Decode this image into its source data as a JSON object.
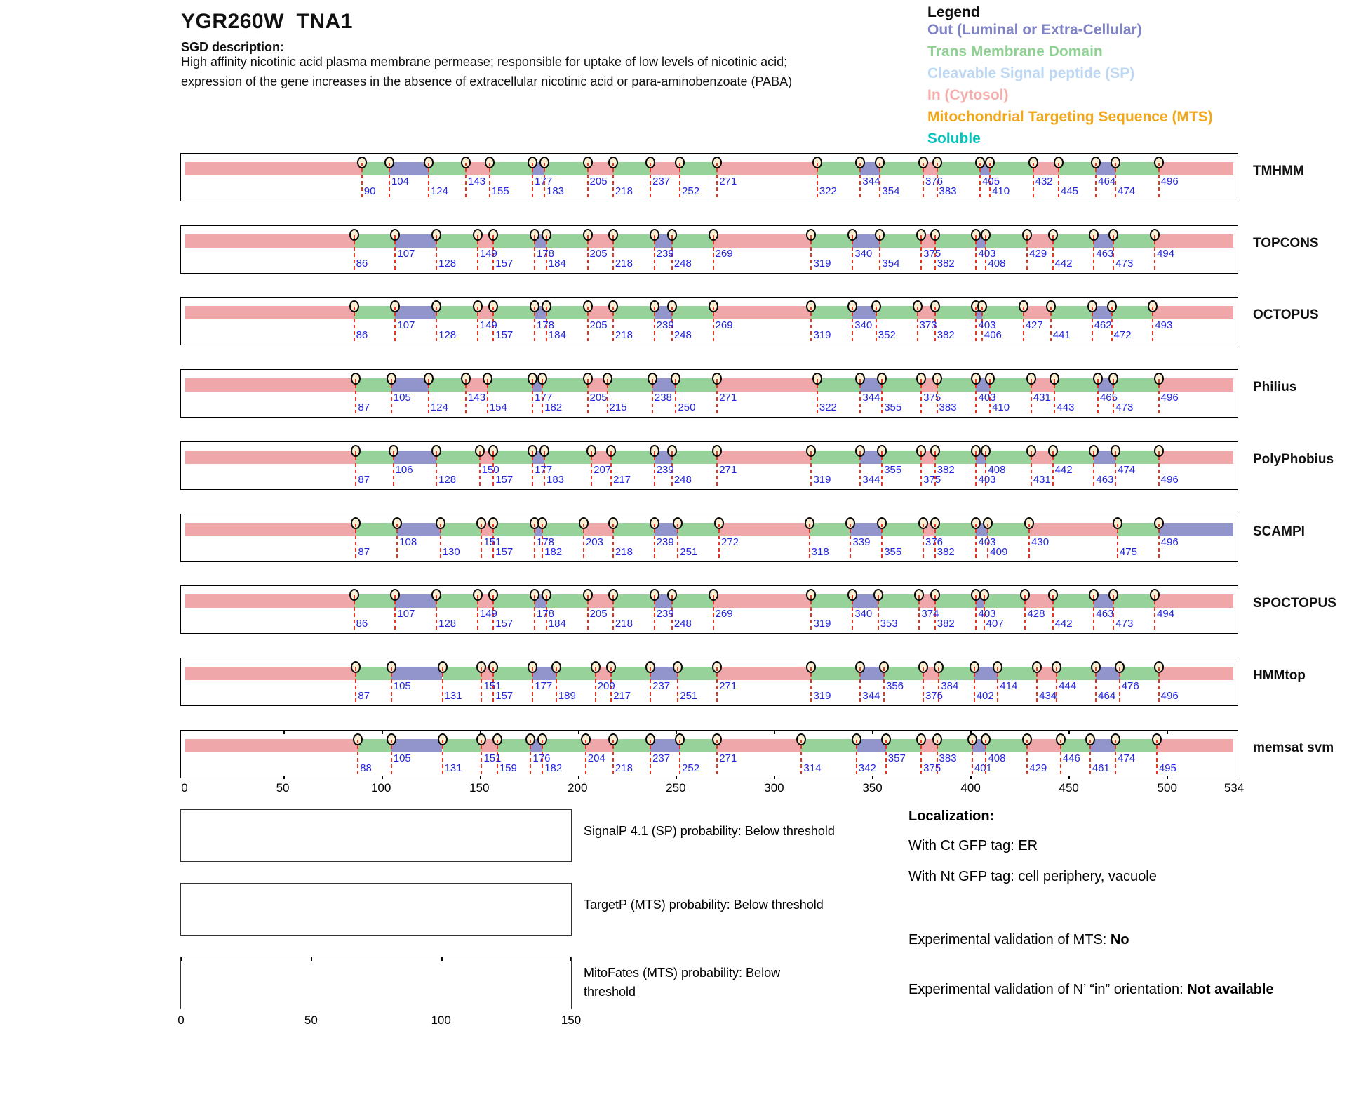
{
  "header": {
    "title": "YGR260W  TNA1",
    "sgd_label": "SGD description:",
    "description_line1": "High affinity nicotinic acid plasma membrane permease; responsible for uptake of low levels of nicotinic acid;",
    "description_line2": "expression of the gene increases in the absence of extracellular nicotinic acid or para-aminobenzoate (PABA)"
  },
  "legend": {
    "title": "Legend",
    "items": [
      {
        "label": "Out (Luminal or Extra-Cellular)",
        "color": "#8083C5"
      },
      {
        "label": "Trans Membrane Domain",
        "color": "#8FD193"
      },
      {
        "label": "Cleavable Signal peptide (SP)",
        "color": "#BDD8F4"
      },
      {
        "label": "In (Cytosol)",
        "color": "#F4AFAC"
      },
      {
        "label": "Mitochondrial Targeting Sequence (MTS)",
        "color": "#F0A719"
      },
      {
        "label": "Soluble",
        "color": "#06C3BE"
      }
    ]
  },
  "chart_data": {
    "type": "topology_tracks",
    "x_range": [
      0,
      534
    ],
    "x_ticks": [
      0,
      50,
      100,
      150,
      200,
      250,
      300,
      350,
      400,
      450,
      500,
      534
    ],
    "region_colors": {
      "i": "#F0A7AA",
      "m": "#97D29A",
      "o": "#9295CC"
    },
    "region_names": {
      "i": "In (Cytosol)",
      "m": "Trans Membrane Domain",
      "o": "Out (Luminal or Extra-Cellular)"
    },
    "tracks": [
      {
        "name": "TMHMM",
        "boundaries": [
          90,
          104,
          124,
          143,
          155,
          177,
          183,
          205,
          218,
          237,
          252,
          271,
          322,
          344,
          354,
          376,
          383,
          405,
          410,
          432,
          445,
          464,
          474,
          496
        ],
        "regions": "imomimomimimimomimomimomi",
        "rows": "LHLHLHLHLHLHLHLHLHLHLHLH"
      },
      {
        "name": "TOPCONS",
        "boundaries": [
          86,
          107,
          128,
          149,
          157,
          178,
          184,
          205,
          218,
          239,
          248,
          269,
          319,
          340,
          354,
          375,
          382,
          403,
          408,
          429,
          442,
          463,
          473,
          494
        ],
        "regions": "imomimomimomimomimomimomi",
        "rows": "LHLHLHLHLHLHLHLHLHLHLHLH"
      },
      {
        "name": "OCTOPUS",
        "boundaries": [
          86,
          107,
          128,
          149,
          157,
          178,
          184,
          205,
          218,
          239,
          248,
          269,
          319,
          340,
          352,
          373,
          382,
          403,
          406,
          427,
          441,
          462,
          472,
          493
        ],
        "regions": "imomimomimomimomimomimomi",
        "rows": "LHLHLHLHLHLHLHLHLHLHLHLH"
      },
      {
        "name": "Philius",
        "boundaries": [
          87,
          105,
          124,
          143,
          154,
          177,
          182,
          205,
          215,
          238,
          250,
          271,
          322,
          344,
          355,
          375,
          383,
          403,
          410,
          431,
          443,
          465,
          473,
          496
        ],
        "regions": "imomimomimomimomimomimomi",
        "rows": "LHLHLHLHLHLHLHLHLHLHLHLH"
      },
      {
        "name": "PolyPhobius",
        "boundaries": [
          87,
          106,
          128,
          150,
          157,
          177,
          183,
          207,
          217,
          239,
          248,
          271,
          319,
          344,
          355,
          375,
          382,
          403,
          408,
          431,
          442,
          463,
          474,
          496
        ],
        "regions": "imomimomimomimomimomimomi",
        "rows": "LHLHLHLHLHLHLLHLHLHLHLHL"
      },
      {
        "name": "SCAMPI",
        "boundaries": [
          87,
          108,
          130,
          151,
          157,
          178,
          182,
          203,
          218,
          239,
          251,
          272,
          318,
          339,
          355,
          376,
          382,
          403,
          409,
          430,
          475,
          496
        ],
        "regions": "imomimomimomimomimomimo",
        "rows": "LHLHLHLHLHLHLHLHLHLHLH"
      },
      {
        "name": "SPOCTOPUS",
        "boundaries": [
          86,
          107,
          128,
          149,
          157,
          178,
          184,
          205,
          218,
          239,
          248,
          269,
          319,
          340,
          353,
          374,
          382,
          403,
          407,
          428,
          442,
          463,
          473,
          494
        ],
        "regions": "imomimomimomimomimomimomi",
        "rows": "LHLHLHLHLHLHLHLHLHLHLHLH"
      },
      {
        "name": "HMMtop",
        "boundaries": [
          87,
          105,
          131,
          151,
          157,
          177,
          189,
          209,
          217,
          237,
          251,
          271,
          319,
          344,
          356,
          376,
          384,
          402,
          414,
          434,
          444,
          464,
          476,
          496
        ],
        "regions": "imomimomimomimomimomimomi",
        "rows": "LHLHLHLHLHLHLLHLHLHLHLHL"
      },
      {
        "name": "memsat svm",
        "boundaries": [
          88,
          105,
          131,
          151,
          159,
          176,
          182,
          204,
          218,
          237,
          252,
          271,
          314,
          342,
          357,
          375,
          383,
          401,
          408,
          429,
          446,
          461,
          474,
          495
        ],
        "regions": "imomimomimomimomimomimomi",
        "rows": "LHLHLHLHLHLHLLHLHLHLHLHL"
      }
    ],
    "probability_plots": [
      {
        "label": "SignalP 4.1 (SP) probability: Below threshold",
        "x_ticks": [],
        "values": []
      },
      {
        "label": "TargetP (MTS) probability: Below threshold",
        "x_ticks": [],
        "values": []
      },
      {
        "label": "MitoFates (MTS) probability: Below threshold",
        "x_ticks": [
          0,
          50,
          100,
          150
        ],
        "values": []
      }
    ]
  },
  "info": {
    "localization_title": "Localization:",
    "ct_line": "With Ct GFP tag: ER",
    "nt_line": "With Nt GFP tag: cell periphery, vacuole",
    "mts_label": "Experimental validation of MTS: ",
    "mts_value": "No",
    "orientation_label": "Experimental validation of N’ “in” orientation: ",
    "orientation_value": "Not available"
  }
}
